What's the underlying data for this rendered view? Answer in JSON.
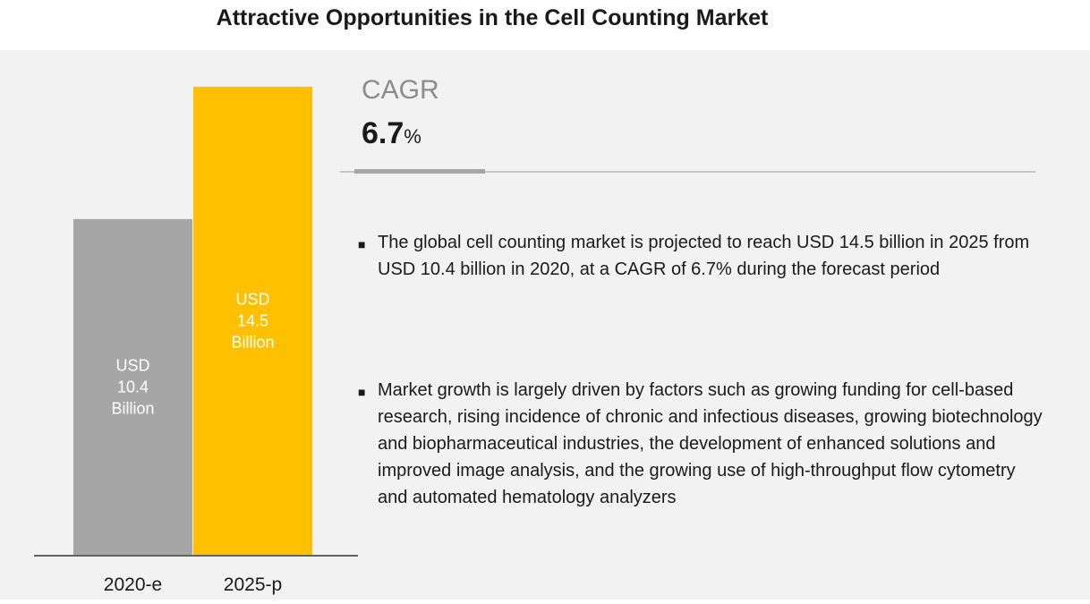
{
  "title": "Attractive Opportunities in the Cell Counting Market",
  "cagr": {
    "label": "CAGR",
    "value": "6.7",
    "unit": "%"
  },
  "bullets": [
    "The global cell counting  market is projected to reach USD 14.5 billion in 2025 from USD 10.4 billion in 2020, at a CAGR of 6.7% during the forecast period",
    " Market growth is largely driven by factors such as growing funding for cell-based research, rising incidence of chronic and infectious diseases, growing biotechnology and biopharmaceutical industries, the development of enhanced solutions and improved image analysis, and the growing use of high-throughput flow cytometry and automated hematology analyzers"
  ],
  "colors": {
    "bar_2020": "#a6a6a6",
    "bar_2025": "#ffc000",
    "panel": "#f2f2f2",
    "bar_label": "#ffffff"
  },
  "chart_data": {
    "type": "bar",
    "categories": [
      "2020-e",
      "2025-p"
    ],
    "values": [
      10.4,
      14.5
    ],
    "data_labels": [
      [
        "USD",
        "10.4",
        "Billion"
      ],
      [
        "USD",
        "14.5",
        "Billion"
      ]
    ],
    "ylim": [
      0,
      15.8
    ],
    "grid": false,
    "legend": "none"
  }
}
